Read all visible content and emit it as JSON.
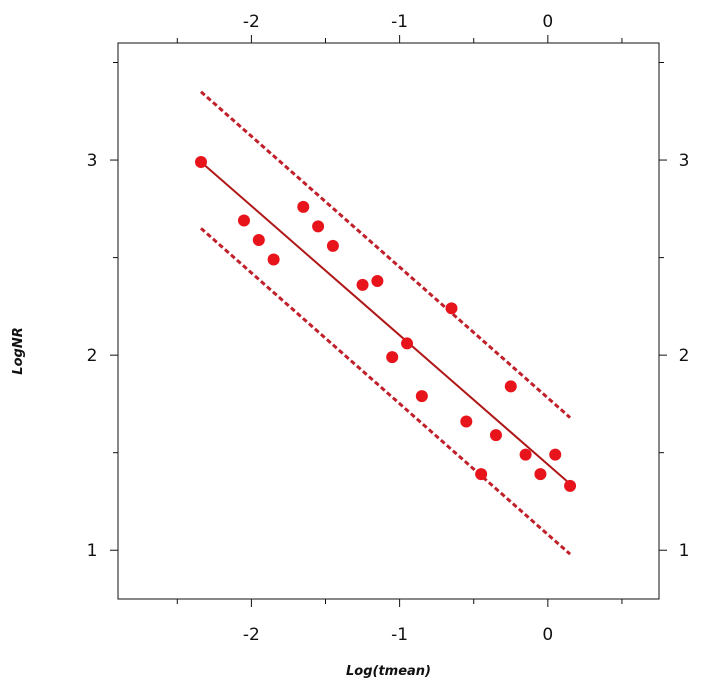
{
  "chart_data": {
    "type": "scatter",
    "xlabel": "Log(tmean)",
    "ylabel": "LogNR",
    "xlim": [
      -2.9,
      0.75
    ],
    "ylim": [
      0.75,
      3.6
    ],
    "x_ticks": [
      -2,
      -1,
      0
    ],
    "x_tick_labels": [
      "-2",
      "-1",
      "0"
    ],
    "y_ticks": [
      1,
      2,
      3
    ],
    "y_tick_labels": [
      "1",
      "2",
      "3"
    ],
    "x_minor_ticks": [
      -2.5,
      -1.5,
      -0.5,
      0.5
    ],
    "y_minor_ticks": [
      1.5,
      2.5,
      3.5
    ],
    "grid": false,
    "legend": "none",
    "colors": {
      "points": "#e8141c",
      "fit_line": "#b01818",
      "band": "#c0202a"
    },
    "points": [
      {
        "x": -2.34,
        "y": 2.99
      },
      {
        "x": -2.05,
        "y": 2.69
      },
      {
        "x": -1.95,
        "y": 2.59
      },
      {
        "x": -1.85,
        "y": 2.49
      },
      {
        "x": -1.65,
        "y": 2.76
      },
      {
        "x": -1.55,
        "y": 2.66
      },
      {
        "x": -1.45,
        "y": 2.56
      },
      {
        "x": -1.25,
        "y": 2.36
      },
      {
        "x": -1.15,
        "y": 2.38
      },
      {
        "x": -1.05,
        "y": 1.99
      },
      {
        "x": -0.95,
        "y": 2.06
      },
      {
        "x": -0.85,
        "y": 1.79
      },
      {
        "x": -0.65,
        "y": 2.24
      },
      {
        "x": -0.55,
        "y": 1.66
      },
      {
        "x": -0.45,
        "y": 1.39
      },
      {
        "x": -0.35,
        "y": 1.59
      },
      {
        "x": -0.25,
        "y": 1.84
      },
      {
        "x": -0.15,
        "y": 1.49
      },
      {
        "x": -0.05,
        "y": 1.39
      },
      {
        "x": 0.05,
        "y": 1.49
      },
      {
        "x": 0.15,
        "y": 1.33
      }
    ],
    "fit_line": [
      {
        "x": -2.34,
        "y": 2.99
      },
      {
        "x": 0.15,
        "y": 1.34
      }
    ],
    "upper_band": [
      {
        "x": -2.34,
        "y": 3.35
      },
      {
        "x": 0.15,
        "y": 1.68
      }
    ],
    "lower_band": [
      {
        "x": -2.34,
        "y": 2.65
      },
      {
        "x": 0.15,
        "y": 0.98
      }
    ]
  }
}
